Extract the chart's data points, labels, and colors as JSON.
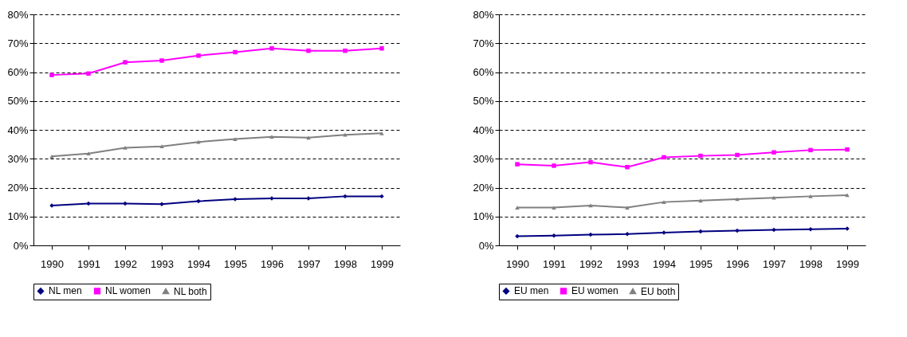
{
  "chart_data": [
    {
      "type": "line",
      "categories": [
        "1990",
        "1991",
        "1992",
        "1993",
        "1994",
        "1995",
        "1996",
        "1997",
        "1998",
        "1999"
      ],
      "series": [
        {
          "name": "NL men",
          "color": "#000080",
          "marker": "diamond",
          "values": [
            13.8,
            14.5,
            14.5,
            14.3,
            15.3,
            16,
            16.3,
            16.3,
            17,
            17
          ]
        },
        {
          "name": "NL women",
          "color": "#ff00ff",
          "marker": "square",
          "values": [
            59,
            59.5,
            63.4,
            64,
            65.7,
            66.9,
            68.2,
            67.4,
            67.4,
            68.2
          ]
        },
        {
          "name": "NL both",
          "color": "#808080",
          "marker": "triangle",
          "values": [
            30.8,
            31.8,
            33.8,
            34.3,
            35.8,
            36.8,
            37.6,
            37.3,
            38.3,
            38.8
          ]
        }
      ],
      "ylim": [
        0,
        80
      ],
      "yticks": [
        {
          "value": 0,
          "label": "0%"
        },
        {
          "value": 10,
          "label": "10%"
        },
        {
          "value": 20,
          "label": "20%"
        },
        {
          "value": 30,
          "label": "30%"
        },
        {
          "value": 40,
          "label": "40%"
        },
        {
          "value": 50,
          "label": "50%"
        },
        {
          "value": 60,
          "label": "60%"
        },
        {
          "value": 70,
          "label": "70%"
        },
        {
          "value": 80,
          "label": "80%"
        }
      ],
      "grid": "y",
      "legend": "bottom",
      "line_style": "solid"
    },
    {
      "type": "line",
      "categories": [
        "1990",
        "1991",
        "1992",
        "1993",
        "1994",
        "1995",
        "1996",
        "1997",
        "1998",
        "1999"
      ],
      "series": [
        {
          "name": "EU men",
          "color": "#000080",
          "marker": "diamond",
          "values": [
            3.2,
            3.4,
            3.7,
            3.9,
            4.4,
            4.8,
            5.1,
            5.4,
            5.6,
            5.8
          ]
        },
        {
          "name": "EU women",
          "color": "#ff00ff",
          "marker": "square",
          "values": [
            28.1,
            27.6,
            28.8,
            27.1,
            30.5,
            31,
            31.3,
            32.2,
            33,
            33.2
          ]
        },
        {
          "name": "EU both",
          "color": "#808080",
          "marker": "triangle",
          "values": [
            13.1,
            13.1,
            13.8,
            13.1,
            15,
            15.5,
            16,
            16.5,
            17,
            17.4
          ]
        }
      ],
      "ylim": [
        0,
        80
      ],
      "yticks": [
        {
          "value": 0,
          "label": "0%"
        },
        {
          "value": 10,
          "label": "10%"
        },
        {
          "value": 20,
          "label": "20%"
        },
        {
          "value": 30,
          "label": "30%"
        },
        {
          "value": 40,
          "label": "40%"
        },
        {
          "value": 50,
          "label": "50%"
        },
        {
          "value": 60,
          "label": "60%"
        },
        {
          "value": 70,
          "label": "70%"
        },
        {
          "value": 80,
          "label": "80%"
        }
      ],
      "grid": "y",
      "legend": "bottom",
      "line_style": "solid"
    }
  ]
}
